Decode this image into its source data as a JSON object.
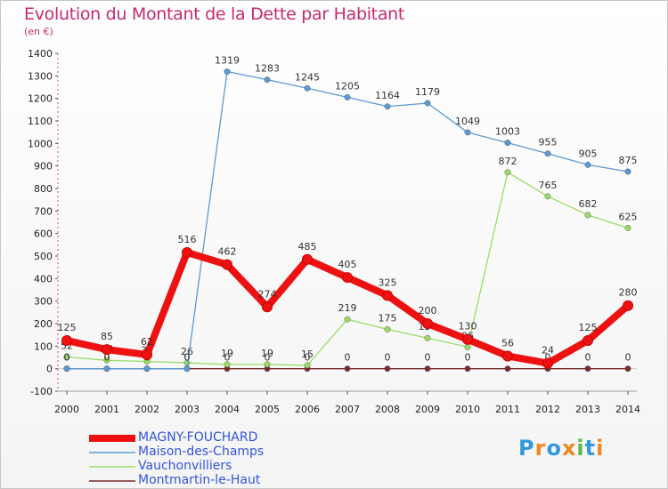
{
  "chart_data": {
    "type": "line",
    "title": "Evolution du Montant de la Dette par Habitant",
    "subtitle": "(en €)",
    "xlabel": "",
    "ylabel": "",
    "ylim": [
      -100,
      1400
    ],
    "yticks": [
      "-100",
      "0",
      "100",
      "200",
      "300",
      "400",
      "500",
      "600",
      "700",
      "800",
      "900",
      "1000",
      "1100",
      "1200",
      "1300",
      "1400"
    ],
    "categories": [
      "2000",
      "2001",
      "2002",
      "2003",
      "2004",
      "2005",
      "2006",
      "2007",
      "2008",
      "2009",
      "2010",
      "2011",
      "2012",
      "2013",
      "2014"
    ],
    "series": [
      {
        "name": "Montmartin-le-Haut",
        "color": "#7a2a2a",
        "values": [
          0,
          0,
          0,
          0,
          0,
          0,
          0,
          0,
          0,
          0,
          0,
          0,
          0,
          0,
          0
        ],
        "labels": [
          "0",
          "0",
          "0",
          "0",
          "0",
          "0",
          "0",
          "0",
          "0",
          "0",
          "0",
          "0",
          "0",
          "0",
          "0"
        ]
      },
      {
        "name": "Vauchonvilliers",
        "color": "#99dd66",
        "values": [
          52,
          37,
          32,
          26,
          19,
          19,
          15,
          219,
          175,
          136,
          96,
          872,
          765,
          682,
          625
        ],
        "labels": [
          "52",
          "37",
          "32",
          "26",
          "19",
          "19",
          "15",
          "219",
          "175",
          "136",
          "96",
          "872",
          "765",
          "682",
          "625"
        ]
      },
      {
        "name": "Maison-des-Champs",
        "color": "#5b9bd5",
        "values": [
          0,
          0,
          0,
          0,
          1319,
          1283,
          1245,
          1205,
          1164,
          1179,
          1049,
          1003,
          955,
          905,
          875
        ],
        "labels": [
          "0",
          "0",
          "0",
          "0",
          "1319",
          "1283",
          "1245",
          "1205",
          "1164",
          "1179",
          "1049",
          "1003",
          "955",
          "905",
          "875"
        ]
      },
      {
        "name": "MAGNY-FOUCHARD",
        "color": "#ee1111",
        "values": [
          125,
          85,
          62,
          516,
          462,
          274,
          485,
          405,
          325,
          200,
          130,
          56,
          24,
          125,
          280
        ],
        "labels": [
          "125",
          "85",
          "62",
          "516",
          "462",
          "274",
          "485",
          "405",
          "325",
          "200",
          "130",
          "56",
          "24",
          "125",
          "280"
        ]
      }
    ],
    "legend": [
      "MAGNY-FOUCHARD",
      "Maison-des-Champs",
      "Vauchonvilliers",
      "Montmartin-le-Haut"
    ],
    "legend_position": "bottom-left"
  },
  "logo": {
    "text": "Proxiti"
  }
}
